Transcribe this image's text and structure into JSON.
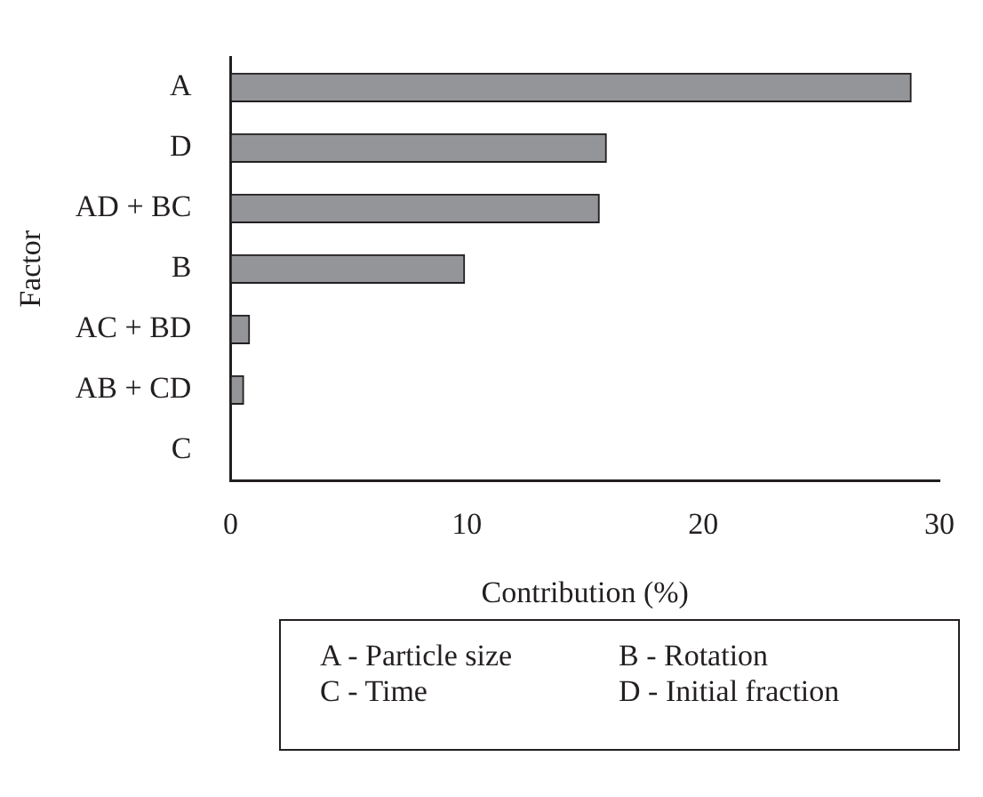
{
  "chart_data": {
    "type": "bar",
    "orientation": "horizontal",
    "xlabel": "Contribution (%)",
    "ylabel": "Factor",
    "categories": [
      "A",
      "D",
      "AD + BC",
      "B",
      "AC + BD",
      "AB + CD",
      "C"
    ],
    "values": [
      28.8,
      15.9,
      15.6,
      9.9,
      0.8,
      0.55,
      0
    ],
    "color": "#939598",
    "xlim": [
      0,
      30
    ],
    "xticks": [
      0,
      10,
      20,
      30
    ],
    "grid": false,
    "legend": false,
    "annotations": [
      "A - Particle size",
      "B - Rotation",
      "C - Time",
      "D - Initial fraction"
    ]
  }
}
